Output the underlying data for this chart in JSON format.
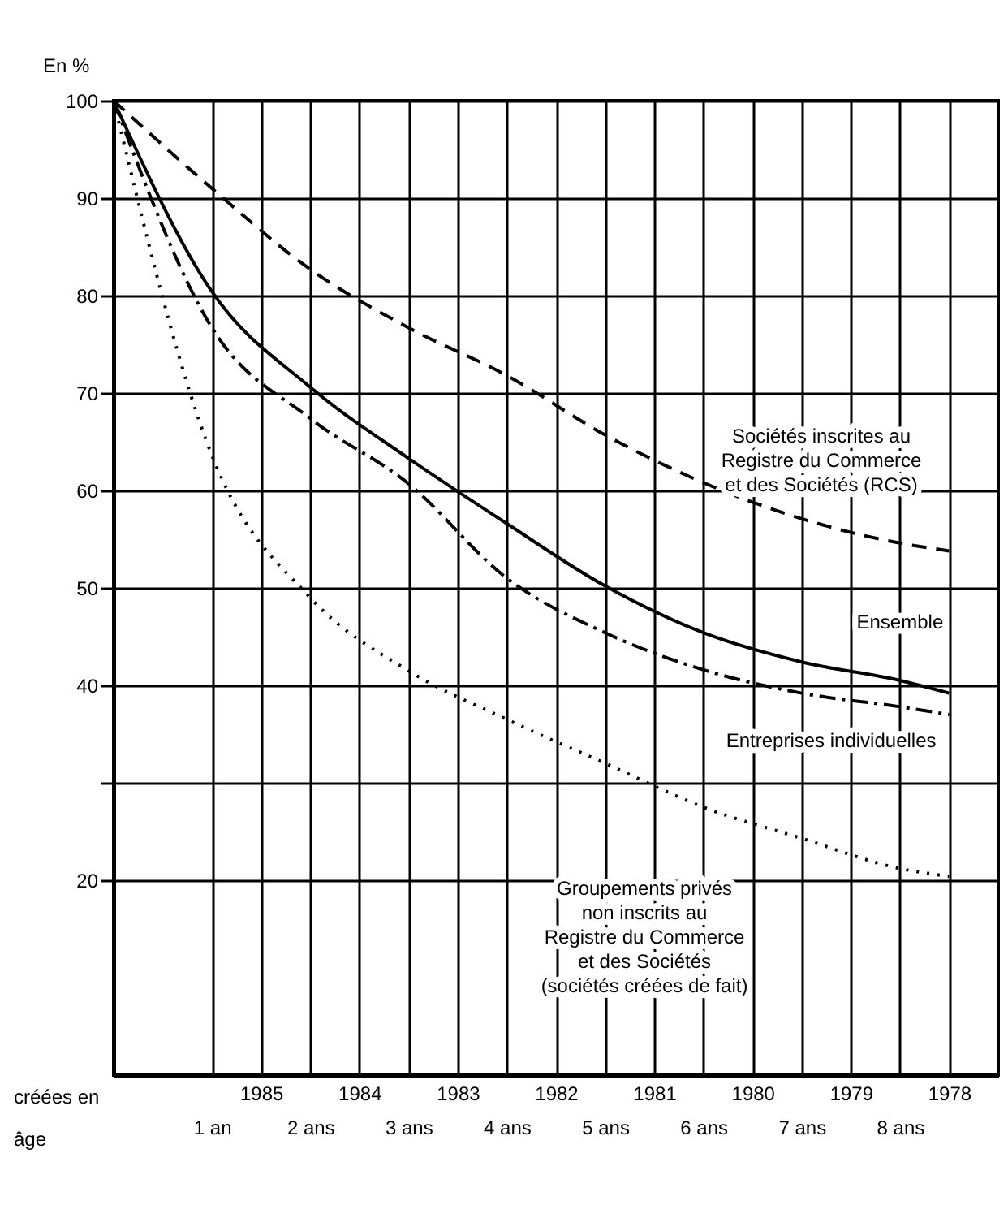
{
  "chart_data": {
    "type": "line",
    "ylabel": "En %",
    "xlabel": "âge",
    "x2label": "créées en",
    "x": [
      0,
      1,
      2,
      3,
      4,
      5,
      6,
      7,
      8,
      8.5
    ],
    "series": [
      {
        "name": "Sociétés inscrites au\nRegistre du Commerce\net des Sociétés (RCS)",
        "color": "#000000",
        "line_style": "dashed",
        "values": [
          100,
          91,
          82.7,
          76.7,
          71.8,
          65.7,
          60.8,
          57.1,
          54.6,
          53.8
        ]
      },
      {
        "name": "Ensemble",
        "color": "#000000",
        "line_style": "solid",
        "values": [
          100,
          80.4,
          70.6,
          63.3,
          56.6,
          50.2,
          45.4,
          42.4,
          40.5,
          39.2
        ]
      },
      {
        "name": "Entreprises individuelles",
        "color": "#000000",
        "line_style": "dashdot",
        "values": [
          100,
          76.7,
          67.4,
          60.7,
          51,
          45.4,
          41.6,
          39.2,
          37.8,
          37
        ]
      },
      {
        "name": "Groupements privés\nnon inscrits au\nRegistre du Commerce\net des Sociétés\n(sociétés créées de fait)",
        "color": "#000000",
        "line_style": "dotted",
        "values": [
          100,
          63.6,
          49,
          41.5,
          36.5,
          32,
          27.5,
          24.3,
          21.2,
          20.4
        ]
      }
    ],
    "xlim": [
      0,
      9
    ],
    "xticks": [
      {
        "value": 1,
        "label": "1 an"
      },
      {
        "value": 2,
        "label": "2 ans"
      },
      {
        "value": 3,
        "label": "3 ans"
      },
      {
        "value": 4,
        "label": "4 ans"
      },
      {
        "value": 5,
        "label": "5 ans"
      },
      {
        "value": 6,
        "label": "6 ans"
      },
      {
        "value": 7,
        "label": "7 ans"
      },
      {
        "value": 8,
        "label": "8 ans"
      }
    ],
    "x2lim": [
      1986.5,
      1977.5
    ],
    "x2ticks": [
      1985,
      1984,
      1983,
      1982,
      1981,
      1980,
      1979,
      1978
    ],
    "ylim": [
      0,
      100
    ],
    "yticks": [
      20,
      {
        "value": 30,
        "label": null
      },
      40,
      50,
      60,
      70,
      80,
      90,
      100
    ],
    "grid": true,
    "legend": false,
    "marker": "none"
  }
}
